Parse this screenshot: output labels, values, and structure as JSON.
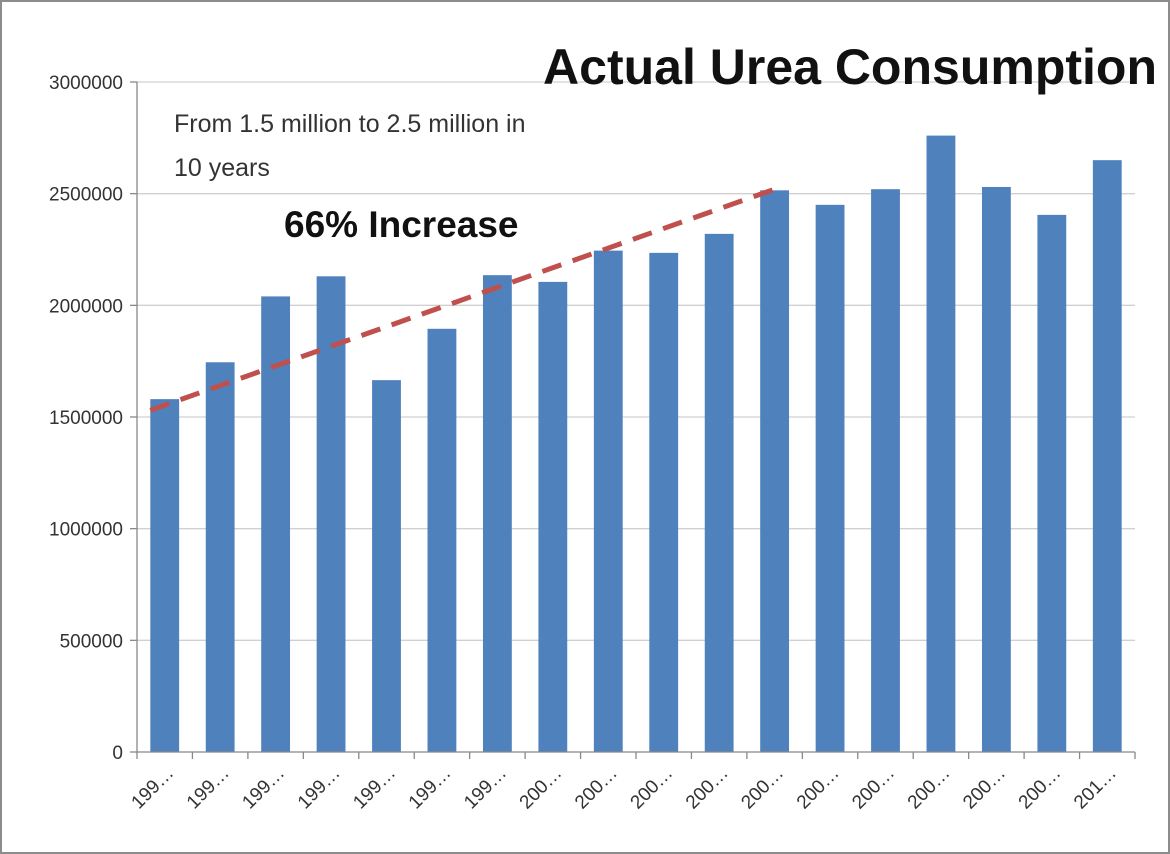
{
  "chart_data": {
    "type": "bar",
    "title": "Actual Urea Consumption",
    "annotation_lines": [
      "From 1.5 million to 2.5 million in",
      "10 years"
    ],
    "callout": "66% Increase",
    "categories": [
      "199…",
      "199…",
      "199…",
      "199…",
      "199…",
      "199…",
      "199…",
      "200…",
      "200…",
      "200…",
      "200…",
      "200…",
      "200…",
      "200…",
      "200…",
      "200…",
      "200…",
      "201…"
    ],
    "values": [
      1580000,
      1745000,
      2040000,
      2130000,
      1665000,
      1895000,
      2135000,
      2105000,
      2245000,
      2235000,
      2320000,
      2515000,
      2450000,
      2520000,
      2760000,
      2530000,
      2405000,
      2650000
    ],
    "ylim": [
      0,
      3000000
    ],
    "yticks": [
      0,
      500000,
      1000000,
      1500000,
      2000000,
      2500000,
      3000000
    ],
    "xlabel": "",
    "ylabel": "",
    "grid": true,
    "legend": "none",
    "trend_line": {
      "from_index": 0,
      "to_index": 11,
      "from_value": 1530000,
      "to_value": 2520000,
      "style": "dashed"
    },
    "colors": {
      "bar": "#4f81bd",
      "trend": "#c0504d",
      "grid": "#d0d0d0",
      "axis": "#888888"
    }
  }
}
